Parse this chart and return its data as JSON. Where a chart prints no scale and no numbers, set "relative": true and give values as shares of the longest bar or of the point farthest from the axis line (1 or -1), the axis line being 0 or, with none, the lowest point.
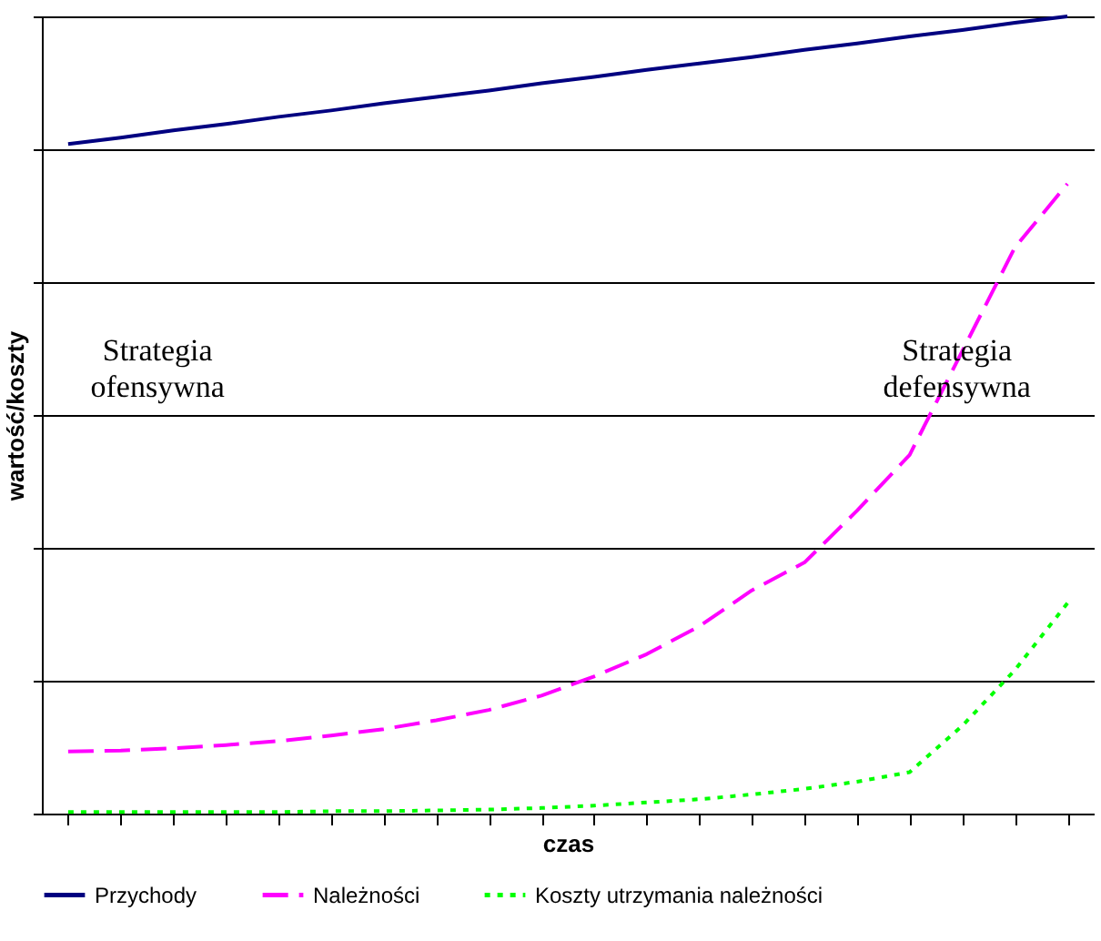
{
  "chart_data": {
    "type": "line",
    "relative": true,
    "xlabel": "czas",
    "ylabel": "wartość/koszty",
    "categories": [
      null,
      null,
      null,
      null,
      null,
      null,
      null,
      null,
      null,
      null,
      null,
      null,
      null,
      null,
      null,
      null,
      null,
      null,
      null,
      null
    ],
    "series": [
      {
        "name": "Przychody",
        "color": "#000080",
        "line_style": "solid",
        "values": [
          0.84,
          0.848,
          0.857,
          0.865,
          0.874,
          0.882,
          0.891,
          0.899,
          0.907,
          0.916,
          0.924,
          0.933,
          0.941,
          0.949,
          0.958,
          0.966,
          0.975,
          0.983,
          0.992,
          1
        ]
      },
      {
        "name": "Należności",
        "color": "#ff00ff",
        "line_style": "dashed",
        "values": [
          0.078,
          0.079,
          0.082,
          0.086,
          0.091,
          0.098,
          0.106,
          0.117,
          0.13,
          0.148,
          0.172,
          0.2,
          0.235,
          0.28,
          0.315,
          0.38,
          0.45,
          0.58,
          0.71,
          0.79
        ]
      },
      {
        "name": "Koszty utrzymania należności",
        "color": "#00ff00",
        "line_style": "dotted",
        "values": [
          0.002,
          0.002,
          0.002,
          0.002,
          0.002,
          0.003,
          0.003,
          0.004,
          0.005,
          0.007,
          0.01,
          0.014,
          0.018,
          0.024,
          0.031,
          0.04,
          0.052,
          0.11,
          0.18,
          0.264
        ]
      }
    ],
    "annotations": [
      "Strategia ofensywna",
      "Strategia defensywna"
    ],
    "grid": "y",
    "legend": "bottom",
    "marker": "none"
  }
}
